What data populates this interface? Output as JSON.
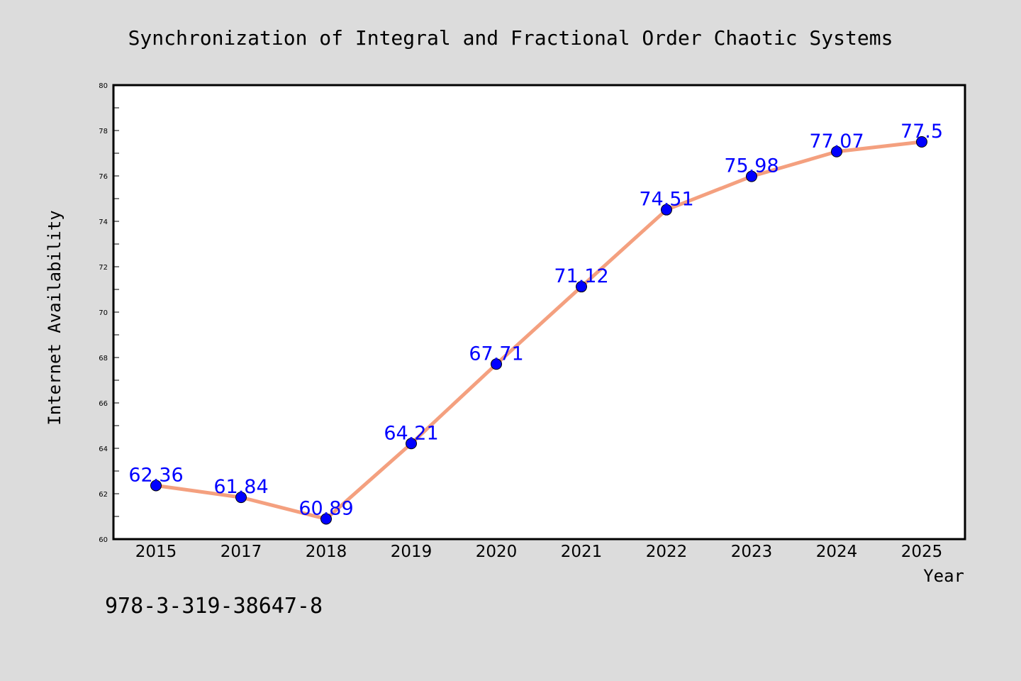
{
  "chart_data": {
    "type": "line",
    "title": "Synchronization of Integral and Fractional Order Chaotic Systems",
    "xlabel": "Year",
    "ylabel": "Internet Availability",
    "categories": [
      "2015",
      "2017",
      "2018",
      "2019",
      "2020",
      "2021",
      "2022",
      "2023",
      "2024",
      "2025"
    ],
    "series": [
      {
        "values": [
          62.36,
          61.84,
          60.89,
          64.21,
          67.71,
          71.12,
          74.51,
          75.98,
          77.07,
          77.5
        ],
        "labels": [
          "62.36",
          "61.84",
          "60.89",
          "64.21",
          "67.71",
          "71.12",
          "74.51",
          "75.98",
          "77.07",
          "77.5"
        ],
        "line_color": "#f4a07f",
        "marker_color": "#0000ff"
      }
    ],
    "ylim": [
      60,
      80
    ],
    "yticks": [
      60,
      62,
      64,
      66,
      68,
      70,
      72,
      74,
      76,
      78,
      80
    ],
    "ytick_labels": [
      "60",
      "62",
      "64",
      "66",
      "68",
      "70",
      "72",
      "74",
      "76",
      "78",
      "80"
    ],
    "grid": false,
    "legend": "none"
  },
  "annotation": "978-3-319-38647-8",
  "colors": {
    "background": "#dcdcdc",
    "plot_area": "#ffffff",
    "label_text": "#0000ff"
  }
}
